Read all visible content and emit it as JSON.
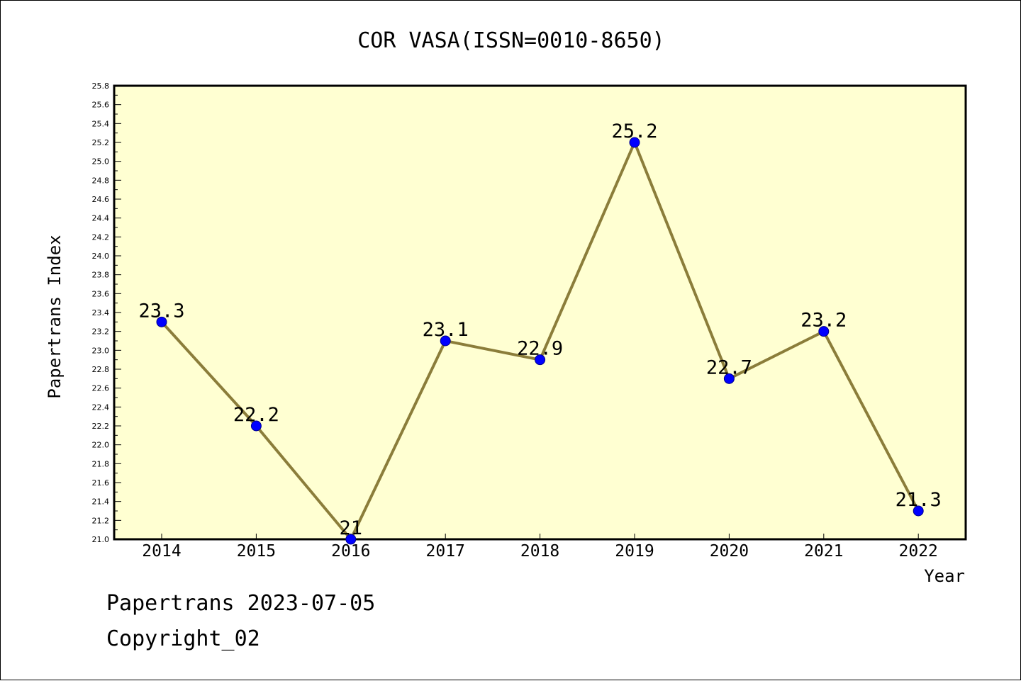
{
  "chart_data": {
    "type": "line",
    "title": "COR VASA(ISSN=0010-8650)",
    "xlabel": "Year",
    "ylabel": "Papertrans Index",
    "categories": [
      "2014",
      "2015",
      "2016",
      "2017",
      "2018",
      "2019",
      "2020",
      "2021",
      "2022"
    ],
    "values": [
      23.3,
      22.2,
      21.0,
      23.1,
      22.9,
      25.2,
      22.7,
      23.2,
      21.3
    ],
    "data_labels": [
      "23.3",
      "22.2",
      "21",
      "23.1",
      "22.9",
      "25.2",
      "22.7",
      "23.2",
      "21.3"
    ],
    "ylim": [
      21.0,
      25.8
    ],
    "ytick_step": 0.2,
    "grid": false,
    "legend": "none",
    "colors": {
      "plot_background": "#ffffd2",
      "line": "#8b7d3a",
      "marker": "#0000ff",
      "axis": "#000000"
    }
  },
  "footer": {
    "line1": "Papertrans 2023-07-05",
    "line2": "Copyright_02"
  }
}
